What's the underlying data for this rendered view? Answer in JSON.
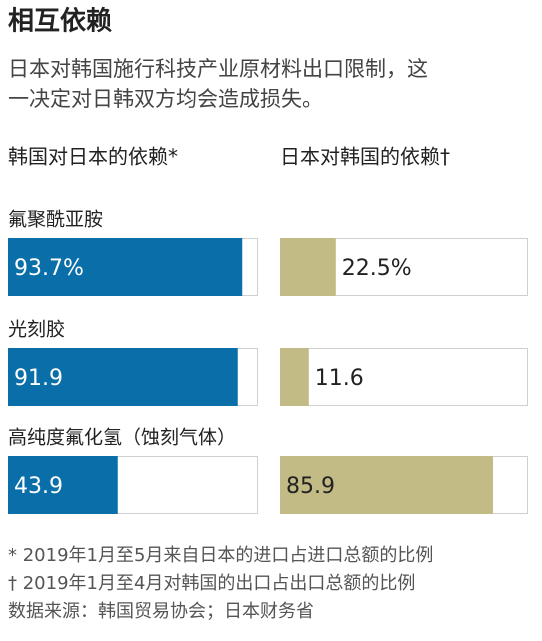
{
  "chart_data": {
    "type": "bar",
    "title": "相互依赖",
    "subtitle": [
      "日本对韩国施行科技产业原材料出口限制，这",
      "一决定对日韩双方均会造成损失。"
    ],
    "categories": [
      "氟聚酰亚胺",
      "光刻胶",
      "高纯度氟化氢（蚀刻气体）"
    ],
    "series": [
      {
        "name": "韩国对日本的依赖*",
        "color": "#0a6ea8",
        "values": [
          93.7,
          91.9,
          43.9
        ],
        "value_labels": [
          "93.7%",
          "91.9",
          "43.9"
        ]
      },
      {
        "name": "日本对韩国的依赖†",
        "color": "#c2bb85",
        "values": [
          22.5,
          11.6,
          85.9
        ],
        "value_labels": [
          "22.5%",
          "11.6",
          "85.9"
        ]
      }
    ],
    "xlim": [
      0,
      100
    ],
    "notes": [
      "* 2019年1月至5月来自日本的进口占进口总额的比例",
      "† 2019年1月至4月对韩国的出口占出口总额的比例",
      "数据来源：韩国贸易协会；日本财务省"
    ]
  }
}
